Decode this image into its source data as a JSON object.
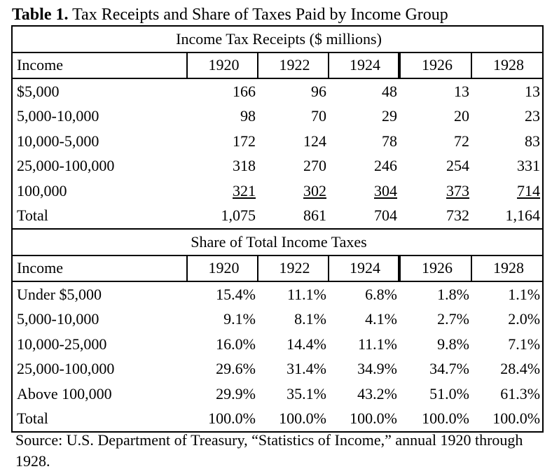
{
  "title": {
    "label": "Table 1.",
    "text": "Tax Receipts and Share of Taxes Paid by Income Group"
  },
  "receipts": {
    "heading": "Income Tax Receipts ($ millions)",
    "columns": [
      "Income",
      "1920",
      "1922",
      "1924",
      "1926",
      "1928"
    ],
    "rows": [
      {
        "label": "$5,000",
        "values": [
          "166",
          "96",
          "48",
          "13",
          "13"
        ]
      },
      {
        "label": "5,000-10,000",
        "values": [
          "98",
          "70",
          "29",
          "20",
          "23"
        ]
      },
      {
        "label": "10,000-5,000",
        "values": [
          "172",
          "124",
          "78",
          "72",
          "83"
        ]
      },
      {
        "label": "25,000-100,000",
        "values": [
          "318",
          "270",
          "246",
          "254",
          "331"
        ]
      },
      {
        "label": "100,000",
        "values": [
          "321",
          "302",
          "304",
          "373",
          "714"
        ]
      },
      {
        "label": "Total",
        "values": [
          "1,075",
          "861",
          "704",
          "732",
          "1,164"
        ]
      }
    ]
  },
  "shares": {
    "heading": "Share of Total Income Taxes",
    "columns": [
      "Income",
      "1920",
      "1922",
      "1924",
      "1926",
      "1928"
    ],
    "rows": [
      {
        "label": "Under $5,000",
        "values": [
          "15.4%",
          "11.1%",
          "6.8%",
          "1.8%",
          "1.1%"
        ]
      },
      {
        "label": "5,000-10,000",
        "values": [
          "9.1%",
          "8.1%",
          "4.1%",
          "2.7%",
          "2.0%"
        ]
      },
      {
        "label": "10,000-25,000",
        "values": [
          "16.0%",
          "14.4%",
          "11.1%",
          "9.8%",
          "7.1%"
        ]
      },
      {
        "label": "25,000-100,000",
        "values": [
          "29.6%",
          "31.4%",
          "34.9%",
          "34.7%",
          "28.4%"
        ]
      },
      {
        "label": "Above 100,000",
        "values": [
          "29.9%",
          "35.1%",
          "43.2%",
          "51.0%",
          "61.3%"
        ]
      },
      {
        "label": "Total",
        "values": [
          "100.0%",
          "100.0%",
          "100.0%",
          "100.0%",
          "100.0%"
        ]
      }
    ]
  },
  "source": "Source: U.S. Department of Treasury, “Statistics of Income,” annual 1920 through 1928."
}
